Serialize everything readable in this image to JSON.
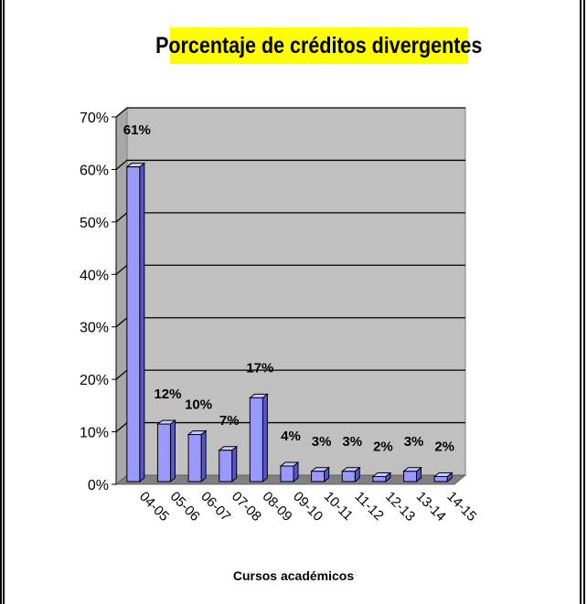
{
  "chart_data": {
    "type": "bar",
    "title": "Porcentaje de créditos divergentes",
    "xlabel": "Cursos académicos",
    "ylabel": "",
    "categories": [
      "04-05",
      "05-06",
      "06-07",
      "07-08",
      "08-09",
      "09-10",
      "10-11",
      "11-12",
      "12-13",
      "13-14",
      "14-15"
    ],
    "values": [
      61,
      12,
      10,
      7,
      17,
      4,
      3,
      3,
      2,
      3,
      2
    ],
    "data_labels": [
      "61%",
      "12%",
      "10%",
      "7%",
      "17%",
      "4%",
      "3%",
      "3%",
      "2%",
      "3%",
      "2%"
    ],
    "ylim": [
      0,
      70
    ],
    "yticks": [
      "0%",
      "10%",
      "20%",
      "30%",
      "40%",
      "50%",
      "60%",
      "70%"
    ],
    "grid": true,
    "colors": {
      "bar_front": "#9999ff",
      "bar_side": "#5555cc",
      "bar_top": "#ccccff",
      "plot_back": "#c0c0c0",
      "plot_floor": "#808080",
      "title_bg": "#ffff00"
    }
  }
}
